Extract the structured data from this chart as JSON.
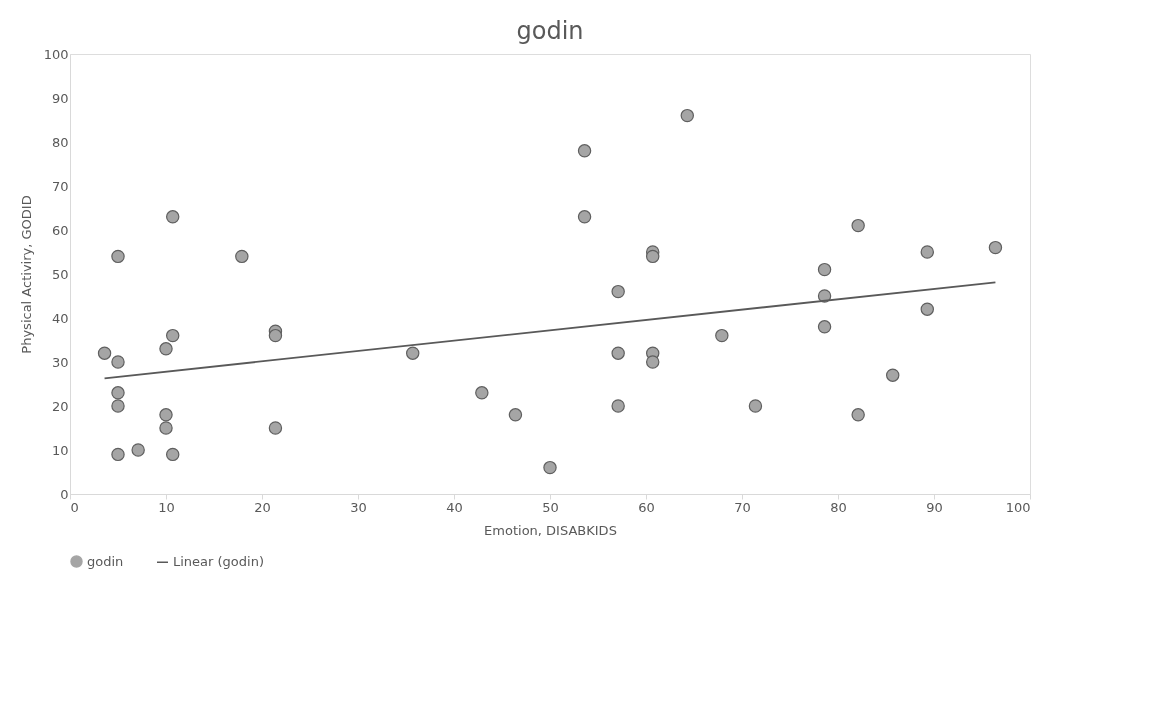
{
  "chart_data": {
    "type": "scatter",
    "title": "godin",
    "xlabel": "Emotion, DISABKIDS",
    "ylabel": "Physical Activiry, GODID",
    "xlim": [
      0,
      100
    ],
    "xticks": [
      0,
      10,
      20,
      30,
      40,
      50,
      60,
      70,
      80,
      90,
      100
    ],
    "ylim": [
      0,
      100
    ],
    "yticks": [
      0,
      10,
      20,
      30,
      40,
      50,
      60,
      70,
      80,
      90,
      100
    ],
    "grid": false,
    "legend": "bottom",
    "series": [
      {
        "name": "godin",
        "marker": "circle",
        "color": "#a5a5a5",
        "x": [
          3.6,
          5,
          5,
          5,
          5,
          5,
          7.1,
          10,
          10,
          10,
          10.7,
          10.7,
          10.7,
          17.9,
          21.4,
          21.4,
          21.4,
          35.7,
          42.9,
          46.4,
          50,
          53.6,
          53.6,
          57.1,
          57.1,
          57.1,
          60.7,
          60.7,
          60.7,
          60.7,
          64.3,
          67.9,
          71.4,
          78.6,
          78.6,
          78.6,
          82.1,
          82.1,
          85.7,
          89.3,
          89.3,
          96.4
        ],
        "values": [
          32,
          54,
          30,
          23,
          20,
          9,
          10,
          33,
          18,
          15,
          63,
          36,
          9,
          54,
          37,
          36,
          15,
          32,
          23,
          18,
          6,
          78,
          63,
          46,
          32,
          20,
          55,
          54,
          32,
          30,
          86,
          36,
          20,
          51,
          45,
          38,
          61,
          18,
          27,
          55,
          42,
          56
        ]
      },
      {
        "name": "Linear (godin)",
        "type": "line",
        "color": "#595959",
        "line_style": "solid",
        "x": [
          3.6,
          96.4
        ],
        "values": [
          26.3,
          48.1
        ]
      }
    ]
  }
}
